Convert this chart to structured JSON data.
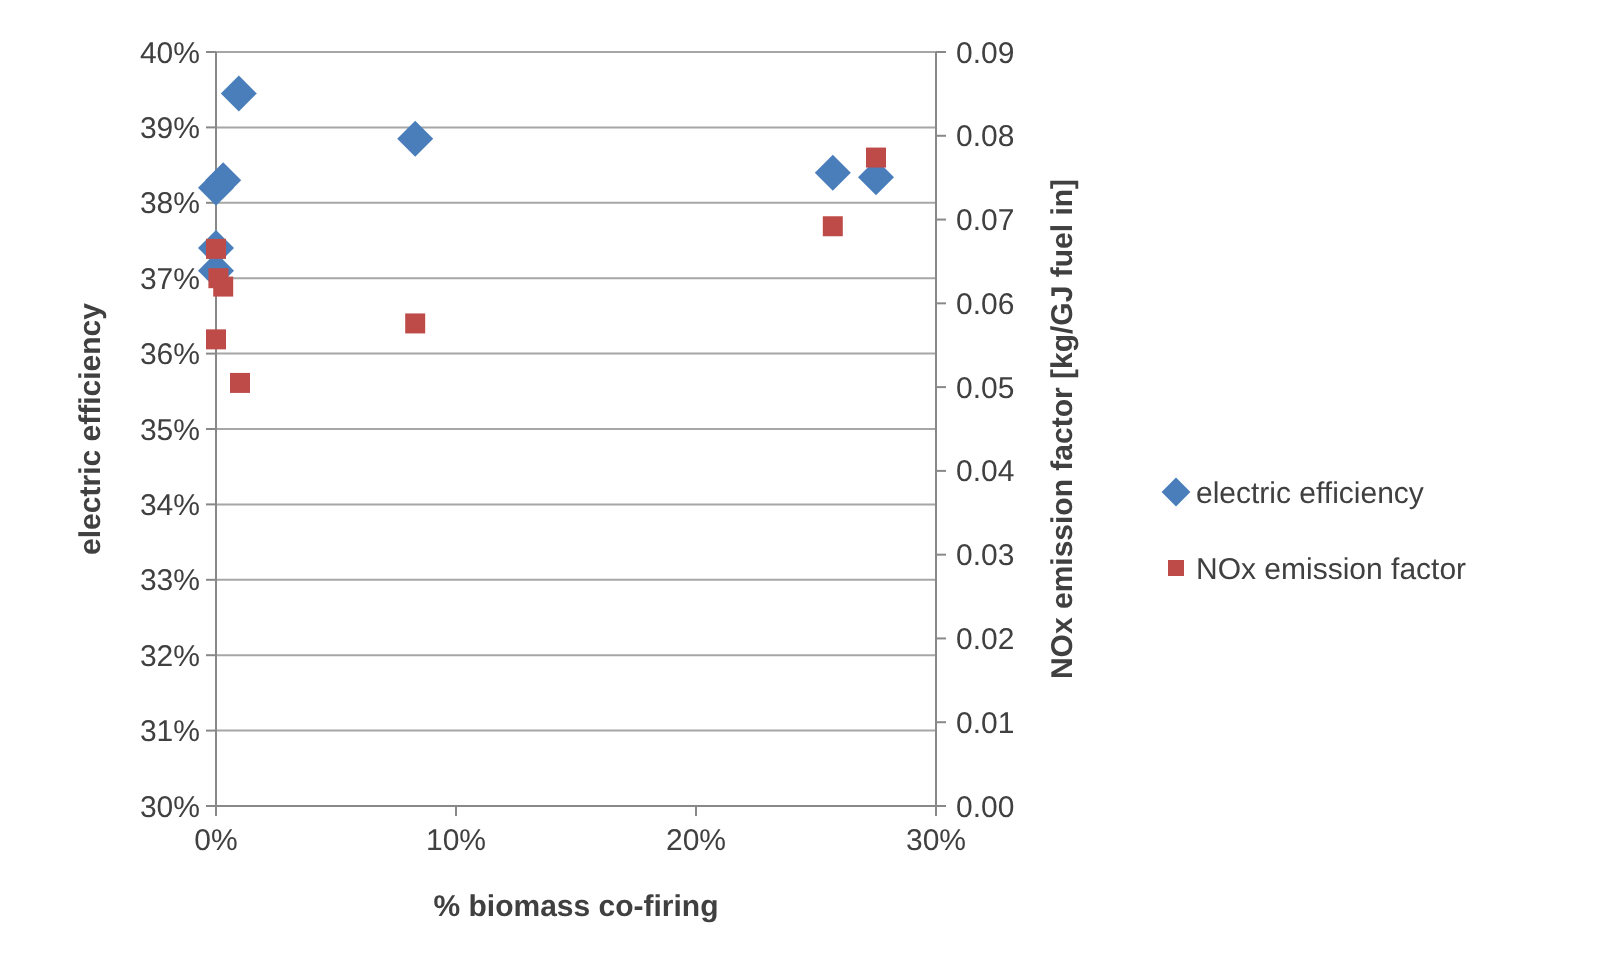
{
  "chart_data": {
    "type": "scatter",
    "xlabel": "% biomass co-firing",
    "ylabel": "electric efficiency",
    "y2label": "NOx emission factor [kg/GJ fuel in]",
    "xlim": [
      0,
      0.3
    ],
    "xticks": [
      {
        "value": 0,
        "label": "0%"
      },
      {
        "value": 0.1,
        "label": "10%"
      },
      {
        "value": 0.2,
        "label": "20%"
      },
      {
        "value": 0.3,
        "label": "30%"
      }
    ],
    "ylim": [
      0.3,
      0.4
    ],
    "yticks": [
      {
        "value": 0.3,
        "label": "30%"
      },
      {
        "value": 0.31,
        "label": "31%"
      },
      {
        "value": 0.32,
        "label": "32%"
      },
      {
        "value": 0.33,
        "label": "33%"
      },
      {
        "value": 0.34,
        "label": "34%"
      },
      {
        "value": 0.35,
        "label": "35%"
      },
      {
        "value": 0.36,
        "label": "36%"
      },
      {
        "value": 0.37,
        "label": "37%"
      },
      {
        "value": 0.38,
        "label": "38%"
      },
      {
        "value": 0.39,
        "label": "39%"
      },
      {
        "value": 0.4,
        "label": "40%"
      }
    ],
    "y2lim": [
      0,
      0.09
    ],
    "y2ticks": [
      {
        "value": 0,
        "label": "0.00"
      },
      {
        "value": 0.01,
        "label": "0.01"
      },
      {
        "value": 0.02,
        "label": "0.02"
      },
      {
        "value": 0.03,
        "label": "0.03"
      },
      {
        "value": 0.04,
        "label": "0.04"
      },
      {
        "value": 0.05,
        "label": "0.05"
      },
      {
        "value": 0.06,
        "label": "0.06"
      },
      {
        "value": 0.07,
        "label": "0.07"
      },
      {
        "value": 0.08,
        "label": "0.08"
      },
      {
        "value": 0.09,
        "label": "0.09"
      }
    ],
    "grid": "y",
    "legend": "right",
    "series": [
      {
        "name": "electric efficiency",
        "color": "#4a7ebb",
        "marker": "diamond",
        "x": [
          0.0095,
          0.003,
          0,
          0,
          0,
          0.083,
          0.257,
          0.275
        ],
        "values": [
          0.3945,
          0.383,
          0.382,
          0.374,
          0.371,
          0.3885,
          0.384,
          0.3834
        ]
      },
      {
        "name": "NOx emission factor",
        "color": "#be4b48",
        "marker": "square",
        "axis": "y2",
        "x": [
          0,
          0.001,
          0.003,
          0,
          0.01,
          0.083,
          0.257,
          0.275
        ],
        "values": [
          0.0665,
          0.063,
          0.062,
          0.0557,
          0.0505,
          0.0576,
          0.0692,
          0.0774
        ]
      }
    ]
  }
}
